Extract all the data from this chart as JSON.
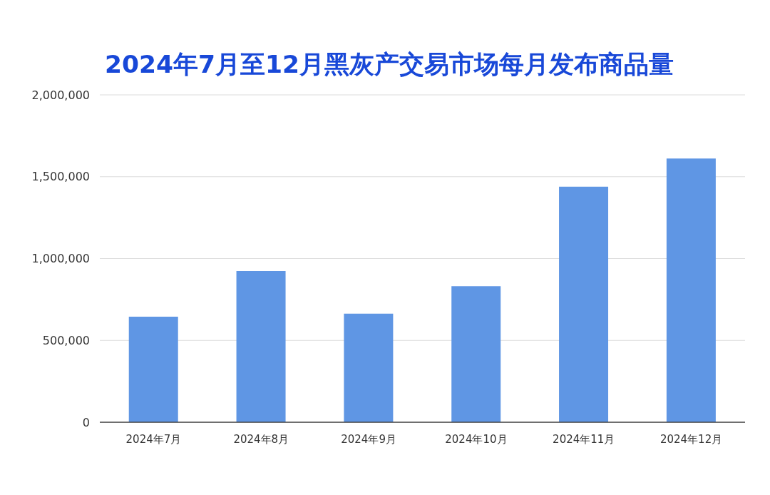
{
  "chart_data": {
    "type": "bar",
    "title": "2024年7月至12月黑灰产交易市场每月发布商品量",
    "categories": [
      "2024年7月",
      "2024年8月",
      "2024年9月",
      "2024年10月",
      "2024年11月",
      "2024年12月"
    ],
    "values": [
      645000,
      924000,
      663000,
      831000,
      1439000,
      1611000
    ],
    "color": "#5f96e4",
    "ylim": [
      0,
      2000000
    ],
    "yticks": [
      0,
      {
        "value": 500000,
        "label": "500,000"
      },
      {
        "value": 1000000,
        "label": "1,000,000"
      },
      {
        "value": 1500000,
        "label": "1,500,000"
      },
      {
        "value": 2000000,
        "label": "2,000,000"
      }
    ],
    "grid": "y"
  }
}
